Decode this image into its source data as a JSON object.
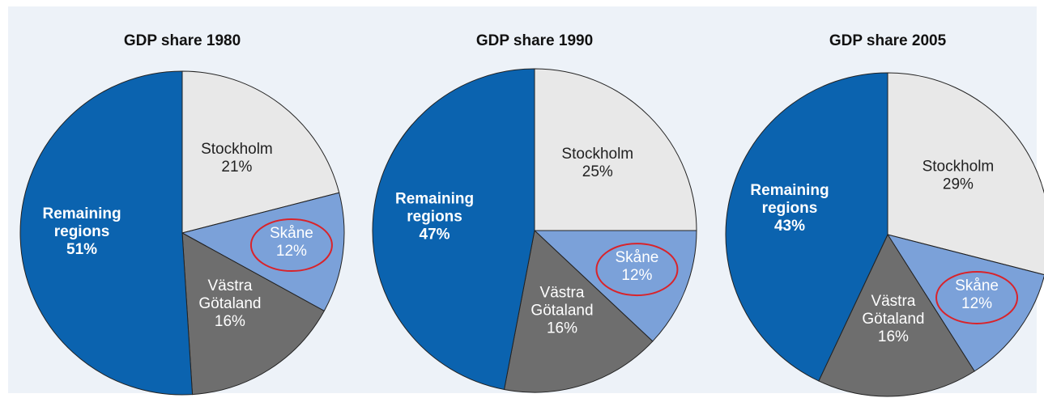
{
  "chart_data": [
    {
      "type": "pie",
      "title": "GDP share 1980",
      "categories": [
        "Stockholm",
        "Skåne",
        "Västra Götaland",
        "Remaining regions"
      ],
      "values": [
        21,
        12,
        16,
        51
      ],
      "value_labels": [
        "21%",
        "12%",
        "16%",
        "51%"
      ],
      "colors": [
        "#e8e8e8",
        "#7ba1d9",
        "#6e6e6e",
        "#0b63af"
      ]
    },
    {
      "type": "pie",
      "title": "GDP share 1990",
      "categories": [
        "Stockholm",
        "Skåne",
        "Västra Götaland",
        "Remaining regions"
      ],
      "values": [
        25,
        12,
        16,
        47
      ],
      "value_labels": [
        "25%",
        "12%",
        "16%",
        "47%"
      ],
      "colors": [
        "#e8e8e8",
        "#7ba1d9",
        "#6e6e6e",
        "#0b63af"
      ]
    },
    {
      "type": "pie",
      "title": "GDP share 2005",
      "categories": [
        "Stockholm",
        "Skåne",
        "Västra Götaland",
        "Remaining regions"
      ],
      "values": [
        29,
        12,
        16,
        43
      ],
      "value_labels": [
        "29%",
        "12%",
        "16%",
        "43%"
      ],
      "colors": [
        "#e8e8e8",
        "#7ba1d9",
        "#6e6e6e",
        "#0b63af"
      ]
    }
  ]
}
